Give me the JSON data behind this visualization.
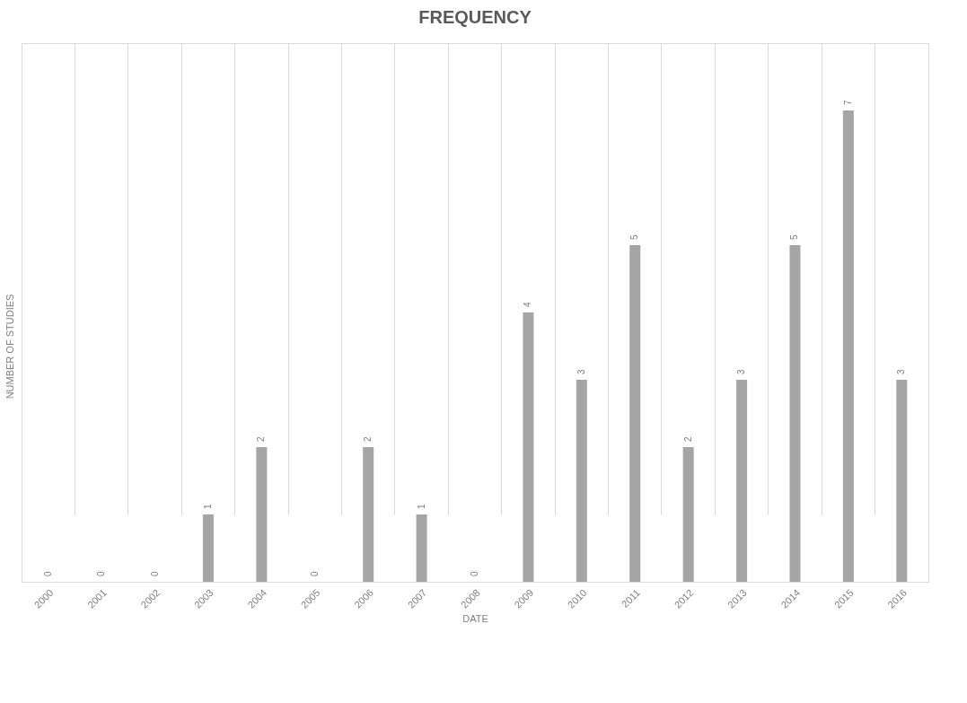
{
  "chart_data": {
    "type": "bar",
    "title": "FREQUENCY",
    "xlabel": "DATE",
    "ylabel": "NUMBER OF STUDIES",
    "categories": [
      "2000",
      "2001",
      "2002",
      "2003",
      "2004",
      "2005",
      "2006",
      "2007",
      "2008",
      "2009",
      "2010",
      "2011",
      "2012",
      "2013",
      "2014",
      "2015",
      "2016"
    ],
    "values": [
      0,
      0,
      0,
      1,
      2,
      0,
      2,
      1,
      0,
      4,
      3,
      5,
      2,
      3,
      5,
      7,
      3
    ],
    "color": "#a5a5a5",
    "data_labels": true,
    "grid": "x",
    "tick_labels": "x"
  }
}
